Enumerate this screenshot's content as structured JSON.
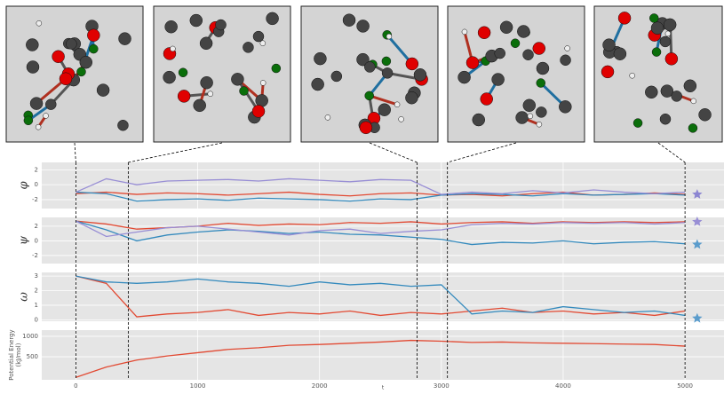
{
  "snapshot_times": [
    0,
    430,
    2800,
    3050,
    5000
  ],
  "chart_data": [
    {
      "type": "line",
      "ylabel": "φ",
      "x": [
        0,
        250,
        500,
        750,
        1000,
        1250,
        1500,
        1750,
        2000,
        2250,
        2500,
        2750,
        3000,
        3250,
        3500,
        3750,
        4000,
        4250,
        4500,
        4750,
        5000
      ],
      "xlim": [
        -280,
        5320
      ],
      "xticks": [
        0,
        1000,
        2000,
        3000,
        4000,
        5000
      ],
      "ylim": [
        -3.2,
        3
      ],
      "yticks": [
        -2,
        0,
        2
      ],
      "series": [
        {
          "color": "#e24a33",
          "values": [
            -1.2,
            -1.0,
            -1.3,
            -1.1,
            -1.2,
            -1.4,
            -1.2,
            -1.0,
            -1.3,
            -1.5,
            -1.2,
            -1.1,
            -1.4,
            -1.3,
            -1.5,
            -1.2,
            -1.0,
            -1.4,
            -1.3,
            -1.1,
            -1.3
          ]
        },
        {
          "color": "#348abd",
          "values": [
            -1.0,
            -1.2,
            -2.2,
            -2.0,
            -1.9,
            -2.1,
            -1.8,
            -1.9,
            -2.0,
            -2.2,
            -1.9,
            -2.0,
            -1.4,
            -1.2,
            -1.3,
            -1.5,
            -1.2,
            -1.4,
            -1.3,
            -1.2,
            -1.4
          ]
        },
        {
          "color": "#988ed5",
          "values": [
            -1.0,
            0.8,
            0.0,
            0.5,
            0.6,
            0.7,
            0.5,
            0.8,
            0.6,
            0.4,
            0.7,
            0.6,
            -1.3,
            -1.0,
            -1.2,
            -0.8,
            -1.1,
            -0.7,
            -1.0,
            -1.2,
            -1.0
          ]
        }
      ],
      "stars": [
        {
          "x": 5100,
          "value": -1.3,
          "color": "#8c86d2"
        }
      ]
    },
    {
      "type": "line",
      "ylabel": "ψ",
      "x": [
        0,
        250,
        500,
        750,
        1000,
        1250,
        1500,
        1750,
        2000,
        2250,
        2500,
        2750,
        3000,
        3250,
        3500,
        3750,
        4000,
        4250,
        4500,
        4750,
        5000
      ],
      "xlim": [
        -280,
        5320
      ],
      "xticks": [
        0,
        1000,
        2000,
        3000,
        4000,
        5000
      ],
      "ylim": [
        -3.1,
        3.2
      ],
      "yticks": [
        -2,
        0,
        2
      ],
      "series": [
        {
          "color": "#e24a33",
          "values": [
            2.7,
            2.3,
            1.6,
            1.8,
            2.0,
            2.4,
            2.1,
            2.3,
            2.2,
            2.5,
            2.4,
            2.6,
            2.3,
            2.5,
            2.6,
            2.4,
            2.6,
            2.5,
            2.6,
            2.5,
            2.6
          ]
        },
        {
          "color": "#348abd",
          "values": [
            2.7,
            1.5,
            0.0,
            0.8,
            1.2,
            1.5,
            1.3,
            1.0,
            1.2,
            0.9,
            0.8,
            0.5,
            0.2,
            -0.5,
            -0.2,
            -0.3,
            0.0,
            -0.4,
            -0.2,
            -0.1,
            -0.4
          ]
        },
        {
          "color": "#988ed5",
          "values": [
            2.7,
            0.6,
            1.2,
            1.8,
            2.0,
            1.6,
            1.2,
            0.8,
            1.4,
            1.6,
            1.0,
            1.3,
            1.5,
            2.2,
            2.4,
            2.3,
            2.5,
            2.4,
            2.5,
            2.3,
            2.5
          ]
        }
      ],
      "stars": [
        {
          "x": 5100,
          "value": 2.6,
          "color": "#988ed5"
        },
        {
          "x": 5100,
          "value": -0.5,
          "color": "#5a9ccc"
        }
      ]
    },
    {
      "type": "line",
      "ylabel": "ω",
      "x": [
        0,
        250,
        500,
        750,
        1000,
        1250,
        1500,
        1750,
        2000,
        2250,
        2500,
        2750,
        3000,
        3250,
        3500,
        3750,
        4000,
        4250,
        4500,
        4750,
        5000
      ],
      "xlim": [
        -280,
        5320
      ],
      "xticks": [
        0,
        1000,
        2000,
        3000,
        4000,
        5000
      ],
      "ylim": [
        -0.1,
        3.25
      ],
      "yticks": [
        0,
        1,
        2,
        3
      ],
      "series": [
        {
          "color": "#e24a33",
          "values": [
            3.0,
            2.5,
            0.2,
            0.4,
            0.5,
            0.7,
            0.3,
            0.5,
            0.4,
            0.6,
            0.3,
            0.5,
            0.4,
            0.6,
            0.8,
            0.5,
            0.6,
            0.4,
            0.5,
            0.3,
            0.6
          ]
        },
        {
          "color": "#348abd",
          "values": [
            3.0,
            2.6,
            2.5,
            2.6,
            2.8,
            2.6,
            2.5,
            2.3,
            2.6,
            2.4,
            2.5,
            2.3,
            2.4,
            0.4,
            0.6,
            0.5,
            0.9,
            0.7,
            0.5,
            0.6,
            0.3
          ]
        }
      ],
      "stars": [
        {
          "x": 5100,
          "value": 0.1,
          "color": "#5a9ccc"
        }
      ]
    },
    {
      "type": "line",
      "ylabel": [
        "Potential Energy",
        "(kJ/mol)"
      ],
      "xlabel": "t",
      "x": [
        0,
        250,
        500,
        750,
        1000,
        1250,
        1500,
        1750,
        2000,
        2250,
        2500,
        2750,
        3000,
        3250,
        3500,
        3750,
        4000,
        4250,
        4500,
        4750,
        5000
      ],
      "xlim": [
        -280,
        5320
      ],
      "xticks": [
        0,
        1000,
        2000,
        3000,
        4000,
        5000
      ],
      "ylim": [
        -60,
        1150
      ],
      "yticks": [
        500,
        1000
      ],
      "series": [
        {
          "color": "#e24a33",
          "values": [
            0,
            250,
            420,
            520,
            600,
            680,
            720,
            780,
            800,
            830,
            860,
            900,
            880,
            850,
            860,
            840,
            830,
            820,
            810,
            800,
            760
          ]
        }
      ]
    }
  ]
}
